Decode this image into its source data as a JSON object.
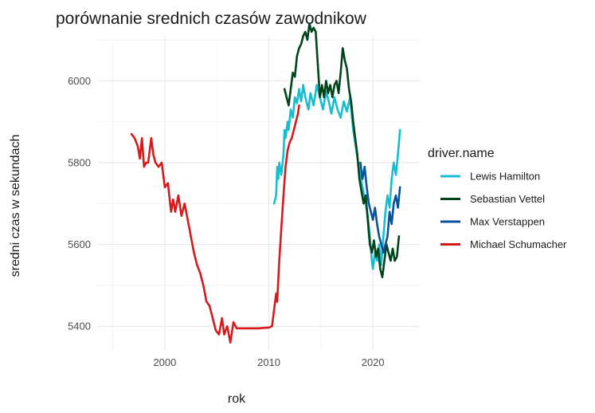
{
  "chart_data": {
    "type": "line",
    "title": "porównanie srednich czasów zawodnikow",
    "xlabel": "rok",
    "ylabel": "sredni czas w sekundach",
    "xlim": [
      1993.5,
      2024.5
    ],
    "ylim": [
      6110,
      5340
    ],
    "y_reversed": true,
    "x_ticks": [
      2000,
      2010,
      2020
    ],
    "y_ticks": [
      5400,
      5600,
      5800,
      6000
    ],
    "grid": true,
    "legend": {
      "title": "driver.name",
      "position": "right"
    },
    "series": [
      {
        "name": "Lewis Hamilton",
        "color": "#17becf",
        "points": [
          [
            2010.5,
            5700
          ],
          [
            2010.7,
            5720
          ],
          [
            2010.8,
            5790
          ],
          [
            2010.9,
            5760
          ],
          [
            2011.0,
            5800
          ],
          [
            2011.2,
            5770
          ],
          [
            2011.4,
            5820
          ],
          [
            2011.5,
            5880
          ],
          [
            2011.6,
            5860
          ],
          [
            2011.8,
            5900
          ],
          [
            2011.9,
            5880
          ],
          [
            2012.1,
            5930
          ],
          [
            2012.3,
            5910
          ],
          [
            2012.5,
            5960
          ],
          [
            2012.7,
            5945
          ],
          [
            2012.9,
            5980
          ],
          [
            2013.1,
            5950
          ],
          [
            2013.3,
            5990
          ],
          [
            2013.5,
            5960
          ],
          [
            2013.8,
            5930
          ],
          [
            2014.0,
            5970
          ],
          [
            2014.3,
            5940
          ],
          [
            2014.6,
            5990
          ],
          [
            2014.9,
            5960
          ],
          [
            2015.2,
            5930
          ],
          [
            2015.5,
            5975
          ],
          [
            2015.8,
            5945
          ],
          [
            2016.0,
            5920
          ],
          [
            2016.3,
            5960
          ],
          [
            2016.6,
            5930
          ],
          [
            2016.9,
            5910
          ],
          [
            2017.2,
            5950
          ],
          [
            2017.5,
            5925
          ],
          [
            2017.8,
            5960
          ],
          [
            2018.1,
            5880
          ],
          [
            2018.4,
            5830
          ],
          [
            2018.7,
            5780
          ],
          [
            2019.0,
            5740
          ],
          [
            2019.3,
            5700
          ],
          [
            2019.5,
            5670
          ],
          [
            2019.7,
            5620
          ],
          [
            2019.9,
            5560
          ],
          [
            2020.0,
            5540
          ],
          [
            2020.2,
            5580
          ],
          [
            2020.4,
            5560
          ],
          [
            2020.6,
            5600
          ],
          [
            2020.8,
            5550
          ],
          [
            2021.0,
            5620
          ],
          [
            2021.2,
            5680
          ],
          [
            2021.4,
            5720
          ],
          [
            2021.6,
            5690
          ],
          [
            2021.8,
            5760
          ],
          [
            2022.0,
            5800
          ],
          [
            2022.2,
            5770
          ],
          [
            2022.4,
            5820
          ],
          [
            2022.6,
            5880
          ]
        ]
      },
      {
        "name": "Sebastian Vettel",
        "color": "#00441b",
        "points": [
          [
            2011.5,
            5980
          ],
          [
            2011.7,
            5960
          ],
          [
            2011.9,
            5940
          ],
          [
            2012.1,
            5980
          ],
          [
            2012.3,
            6020
          ],
          [
            2012.5,
            6010
          ],
          [
            2012.7,
            6060
          ],
          [
            2012.9,
            6080
          ],
          [
            2013.1,
            6090
          ],
          [
            2013.3,
            6110
          ],
          [
            2013.5,
            6120
          ],
          [
            2013.7,
            6100
          ],
          [
            2013.9,
            6140
          ],
          [
            2014.1,
            6120
          ],
          [
            2014.3,
            6130
          ],
          [
            2014.5,
            6120
          ],
          [
            2014.7,
            6040
          ],
          [
            2014.9,
            5960
          ],
          [
            2015.1,
            5990
          ],
          [
            2015.3,
            5960
          ],
          [
            2015.5,
            6000
          ],
          [
            2015.7,
            5970
          ],
          [
            2015.9,
            5990
          ],
          [
            2016.1,
            5960
          ],
          [
            2016.3,
            5990
          ],
          [
            2016.5,
            6000
          ],
          [
            2016.7,
            5970
          ],
          [
            2016.9,
            6020
          ],
          [
            2017.1,
            6080
          ],
          [
            2017.3,
            6050
          ],
          [
            2017.5,
            6030
          ],
          [
            2017.7,
            5980
          ],
          [
            2017.9,
            5950
          ],
          [
            2018.1,
            5900
          ],
          [
            2018.3,
            5860
          ],
          [
            2018.5,
            5820
          ],
          [
            2018.7,
            5760
          ],
          [
            2018.9,
            5730
          ],
          [
            2019.1,
            5700
          ],
          [
            2019.3,
            5720
          ],
          [
            2019.5,
            5660
          ],
          [
            2019.7,
            5600
          ],
          [
            2019.9,
            5580
          ],
          [
            2020.1,
            5610
          ],
          [
            2020.3,
            5570
          ],
          [
            2020.5,
            5590
          ],
          [
            2020.7,
            5540
          ],
          [
            2020.9,
            5520
          ],
          [
            2021.1,
            5560
          ],
          [
            2021.3,
            5600
          ],
          [
            2021.5,
            5580
          ],
          [
            2021.7,
            5560
          ],
          [
            2021.9,
            5590
          ],
          [
            2022.1,
            5560
          ],
          [
            2022.3,
            5570
          ],
          [
            2022.5,
            5620
          ]
        ]
      },
      {
        "name": "Max Verstappen",
        "color": "#08519c",
        "points": [
          [
            2018.8,
            5800
          ],
          [
            2019.0,
            5760
          ],
          [
            2019.2,
            5790
          ],
          [
            2019.4,
            5740
          ],
          [
            2019.6,
            5700
          ],
          [
            2019.8,
            5680
          ],
          [
            2020.0,
            5660
          ],
          [
            2020.2,
            5690
          ],
          [
            2020.4,
            5650
          ],
          [
            2020.6,
            5620
          ],
          [
            2020.8,
            5600
          ],
          [
            2021.0,
            5580
          ],
          [
            2021.2,
            5600
          ],
          [
            2021.4,
            5620
          ],
          [
            2021.6,
            5680
          ],
          [
            2021.8,
            5650
          ],
          [
            2022.0,
            5700
          ],
          [
            2022.2,
            5720
          ],
          [
            2022.4,
            5690
          ],
          [
            2022.6,
            5740
          ]
        ]
      },
      {
        "name": "Michael Schumacher",
        "color": "#d7191c",
        "points": [
          [
            1996.8,
            5870
          ],
          [
            1997.1,
            5860
          ],
          [
            1997.4,
            5840
          ],
          [
            1997.6,
            5810
          ],
          [
            1997.8,
            5860
          ],
          [
            1998.0,
            5790
          ],
          [
            1998.2,
            5800
          ],
          [
            1998.4,
            5800
          ],
          [
            1998.7,
            5860
          ],
          [
            1998.9,
            5820
          ],
          [
            1999.1,
            5800
          ],
          [
            1999.4,
            5790
          ],
          [
            1999.7,
            5800
          ],
          [
            2000.0,
            5740
          ],
          [
            2000.3,
            5750
          ],
          [
            2000.6,
            5680
          ],
          [
            2000.8,
            5710
          ],
          [
            2001.0,
            5680
          ],
          [
            2001.3,
            5720
          ],
          [
            2001.6,
            5670
          ],
          [
            2001.9,
            5700
          ],
          [
            2002.2,
            5660
          ],
          [
            2002.5,
            5620
          ],
          [
            2002.8,
            5580
          ],
          [
            2003.1,
            5550
          ],
          [
            2003.4,
            5530
          ],
          [
            2003.7,
            5500
          ],
          [
            2004.0,
            5460
          ],
          [
            2004.3,
            5450
          ],
          [
            2004.6,
            5420
          ],
          [
            2004.9,
            5390
          ],
          [
            2005.2,
            5380
          ],
          [
            2005.5,
            5420
          ],
          [
            2005.7,
            5380
          ],
          [
            2006.0,
            5400
          ],
          [
            2006.3,
            5360
          ],
          [
            2006.6,
            5410
          ],
          [
            2006.9,
            5395
          ],
          [
            2007.2,
            5395
          ],
          [
            2007.6,
            5395
          ],
          [
            2008.0,
            5395
          ],
          [
            2008.5,
            5395
          ],
          [
            2009.0,
            5395
          ],
          [
            2009.5,
            5396
          ],
          [
            2010.0,
            5397
          ],
          [
            2010.3,
            5400
          ],
          [
            2010.5,
            5440
          ],
          [
            2010.7,
            5480
          ],
          [
            2010.8,
            5460
          ],
          [
            2011.0,
            5560
          ],
          [
            2011.2,
            5640
          ],
          [
            2011.4,
            5720
          ],
          [
            2011.6,
            5790
          ],
          [
            2011.8,
            5830
          ],
          [
            2012.0,
            5850
          ],
          [
            2012.2,
            5860
          ],
          [
            2012.4,
            5880
          ],
          [
            2012.6,
            5900
          ],
          [
            2012.8,
            5920
          ],
          [
            2012.9,
            5940
          ]
        ]
      }
    ]
  }
}
